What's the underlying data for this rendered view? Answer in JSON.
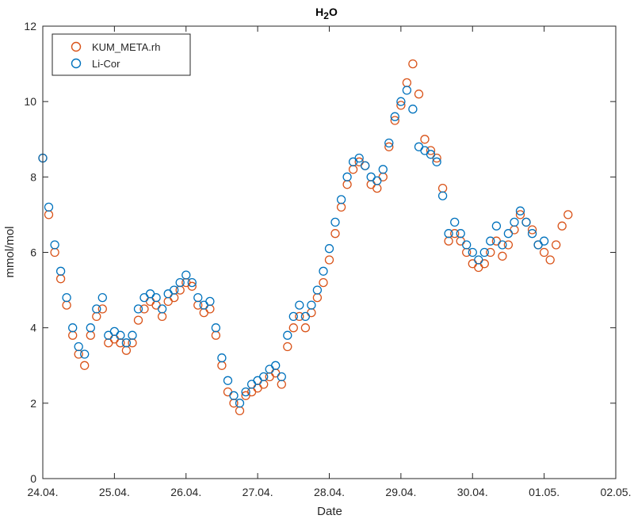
{
  "chart_data": {
    "type": "scatter",
    "title": "H",
    "title_subscript": "2",
    "title_suffix": "O",
    "xlabel": "Date",
    "ylabel": "mmol/mol",
    "ylim": [
      0,
      12
    ],
    "yticks": [
      0,
      2,
      4,
      6,
      8,
      10,
      12
    ],
    "xlim": [
      "2024-04-24",
      "2024-05-02"
    ],
    "xtick_labels": [
      "24.04.",
      "25.04.",
      "26.04.",
      "27.04.",
      "28.04.",
      "29.04.",
      "30.04.",
      "01.05.",
      "02.05."
    ],
    "grid": false,
    "legend_position": "top-left",
    "series": [
      {
        "name": "KUM_META.rh",
        "color": "#D95319",
        "marker": "open-circle",
        "x": [
          "24.04. 00:00",
          "24.04. 02:00",
          "24.04. 04:00",
          "24.04. 06:00",
          "24.04. 08:00",
          "24.04. 10:00",
          "24.04. 12:00",
          "24.04. 14:00",
          "24.04. 16:00",
          "24.04. 18:00",
          "24.04. 20:00",
          "24.04. 22:00",
          "25.04. 00:00",
          "25.04. 02:00",
          "25.04. 04:00",
          "25.04. 06:00",
          "25.04. 08:00",
          "25.04. 10:00",
          "25.04. 12:00",
          "25.04. 14:00",
          "25.04. 16:00",
          "25.04. 18:00",
          "25.04. 20:00",
          "25.04. 22:00",
          "26.04. 00:00",
          "26.04. 02:00",
          "26.04. 04:00",
          "26.04. 06:00",
          "26.04. 08:00",
          "26.04. 10:00",
          "26.04. 12:00",
          "26.04. 14:00",
          "26.04. 16:00",
          "26.04. 18:00",
          "26.04. 20:00",
          "26.04. 22:00",
          "27.04. 00:00",
          "27.04. 02:00",
          "27.04. 04:00",
          "27.04. 06:00",
          "27.04. 08:00",
          "27.04. 10:00",
          "27.04. 12:00",
          "27.04. 14:00",
          "27.04. 16:00",
          "27.04. 18:00",
          "27.04. 20:00",
          "27.04. 22:00",
          "28.04. 00:00",
          "28.04. 02:00",
          "28.04. 04:00",
          "28.04. 06:00",
          "28.04. 08:00",
          "28.04. 10:00",
          "28.04. 12:00",
          "28.04. 14:00",
          "28.04. 16:00",
          "28.04. 18:00",
          "28.04. 20:00",
          "28.04. 22:00",
          "29.04. 00:00",
          "29.04. 02:00",
          "29.04. 04:00",
          "29.04. 06:00",
          "29.04. 08:00",
          "29.04. 10:00",
          "29.04. 12:00",
          "29.04. 14:00",
          "29.04. 16:00",
          "29.04. 18:00",
          "29.04. 20:00",
          "29.04. 22:00",
          "30.04. 00:00",
          "30.04. 02:00",
          "30.04. 04:00",
          "30.04. 06:00",
          "30.04. 08:00",
          "30.04. 10:00",
          "30.04. 12:00",
          "30.04. 14:00",
          "30.04. 16:00",
          "30.04. 18:00",
          "30.04. 20:00",
          "30.04. 22:00",
          "01.05. 00:00",
          "01.05. 02:00",
          "01.05. 04:00",
          "01.05. 06:00",
          "01.05. 08:00"
        ],
        "y": [
          8.5,
          7.0,
          6.0,
          5.3,
          4.6,
          3.8,
          3.3,
          3.0,
          3.8,
          4.3,
          4.5,
          3.6,
          3.7,
          3.6,
          3.4,
          3.6,
          4.2,
          4.5,
          4.7,
          4.6,
          4.3,
          4.7,
          4.8,
          5.0,
          5.2,
          5.1,
          4.6,
          4.4,
          4.5,
          3.8,
          3.0,
          2.3,
          2.0,
          1.8,
          2.2,
          2.3,
          2.4,
          2.5,
          2.7,
          2.8,
          2.5,
          3.5,
          4.0,
          4.3,
          4.0,
          4.4,
          4.8,
          5.2,
          5.8,
          6.5,
          7.2,
          7.8,
          8.2,
          8.4,
          8.3,
          7.8,
          7.7,
          8.0,
          8.8,
          9.5,
          9.9,
          10.5,
          11.0,
          10.2,
          9.0,
          8.7,
          8.5,
          7.7,
          6.3,
          6.5,
          6.3,
          6.0,
          5.7,
          5.6,
          5.7,
          6.0,
          6.3,
          5.9,
          6.2,
          6.6,
          7.0,
          6.8,
          6.6,
          6.2,
          6.0,
          5.8,
          6.2,
          6.7,
          7.0
        ]
      },
      {
        "name": "Li-Cor",
        "color": "#0072BD",
        "marker": "open-circle",
        "x": [
          "24.04. 00:00",
          "24.04. 02:00",
          "24.04. 04:00",
          "24.04. 06:00",
          "24.04. 08:00",
          "24.04. 10:00",
          "24.04. 12:00",
          "24.04. 14:00",
          "24.04. 16:00",
          "24.04. 18:00",
          "24.04. 20:00",
          "24.04. 22:00",
          "25.04. 00:00",
          "25.04. 02:00",
          "25.04. 04:00",
          "25.04. 06:00",
          "25.04. 08:00",
          "25.04. 10:00",
          "25.04. 12:00",
          "25.04. 14:00",
          "25.04. 16:00",
          "25.04. 18:00",
          "25.04. 20:00",
          "25.04. 22:00",
          "26.04. 00:00",
          "26.04. 02:00",
          "26.04. 04:00",
          "26.04. 06:00",
          "26.04. 08:00",
          "26.04. 10:00",
          "26.04. 12:00",
          "26.04. 14:00",
          "26.04. 16:00",
          "26.04. 18:00",
          "26.04. 20:00",
          "26.04. 22:00",
          "27.04. 00:00",
          "27.04. 02:00",
          "27.04. 04:00",
          "27.04. 06:00",
          "27.04. 08:00",
          "27.04. 10:00",
          "27.04. 12:00",
          "27.04. 14:00",
          "27.04. 16:00",
          "27.04. 18:00",
          "27.04. 20:00",
          "27.04. 22:00",
          "28.04. 00:00",
          "28.04. 02:00",
          "28.04. 04:00",
          "28.04. 06:00",
          "28.04. 08:00",
          "28.04. 10:00",
          "28.04. 12:00",
          "28.04. 14:00",
          "28.04. 16:00",
          "28.04. 18:00",
          "28.04. 20:00",
          "28.04. 22:00",
          "29.04. 00:00",
          "29.04. 02:00",
          "29.04. 04:00",
          "29.04. 06:00",
          "29.04. 08:00",
          "29.04. 10:00",
          "29.04. 12:00",
          "29.04. 14:00",
          "29.04. 16:00",
          "29.04. 18:00",
          "29.04. 20:00",
          "29.04. 22:00",
          "30.04. 00:00",
          "30.04. 02:00",
          "30.04. 04:00",
          "30.04. 06:00",
          "30.04. 08:00",
          "30.04. 10:00",
          "30.04. 12:00",
          "30.04. 14:00",
          "30.04. 16:00",
          "30.04. 18:00",
          "30.04. 20:00",
          "30.04. 22:00",
          "01.05. 00:00"
        ],
        "y": [
          8.5,
          7.2,
          6.2,
          5.5,
          4.8,
          4.0,
          3.5,
          3.3,
          4.0,
          4.5,
          4.8,
          3.8,
          3.9,
          3.8,
          3.6,
          3.8,
          4.5,
          4.8,
          4.9,
          4.8,
          4.5,
          4.9,
          5.0,
          5.2,
          5.4,
          5.2,
          4.8,
          4.6,
          4.7,
          4.0,
          3.2,
          2.6,
          2.2,
          2.0,
          2.3,
          2.5,
          2.6,
          2.7,
          2.9,
          3.0,
          2.7,
          3.8,
          4.3,
          4.6,
          4.3,
          4.6,
          5.0,
          5.5,
          6.1,
          6.8,
          7.4,
          8.0,
          8.4,
          8.5,
          8.3,
          8.0,
          7.9,
          8.2,
          8.9,
          9.6,
          10.0,
          10.3,
          9.8,
          8.8,
          8.7,
          8.6,
          8.4,
          7.5,
          6.5,
          6.8,
          6.5,
          6.2,
          6.0,
          5.8,
          6.0,
          6.3,
          6.7,
          6.2,
          6.5,
          6.8,
          7.1,
          6.8,
          6.5,
          6.2,
          6.3
        ]
      }
    ]
  }
}
